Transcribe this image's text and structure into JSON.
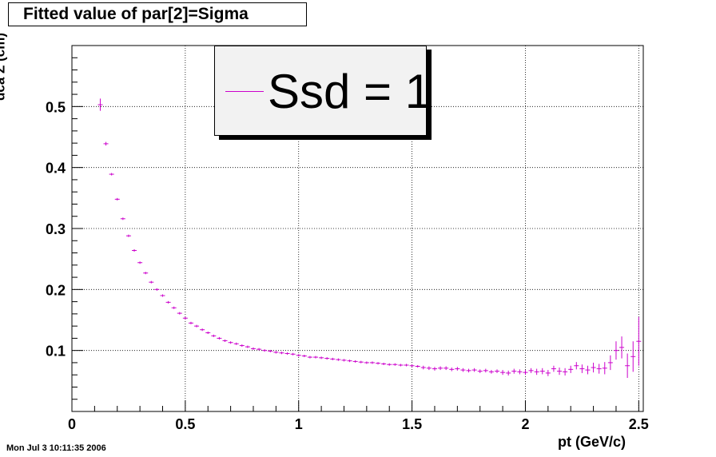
{
  "title": "Fitted value of par[2]=Sigma",
  "timestamp": "Mon Jul  3 10:11:35 2006",
  "legend": {
    "label": "Ssd = 1",
    "color": "#cc00cc"
  },
  "chart_data": {
    "type": "scatter",
    "title": "Fitted value of par[2]=Sigma",
    "xlabel": "pt (GeV/c)",
    "ylabel": "dca Z (cm)",
    "xlim": [
      0,
      2.52
    ],
    "ylim": [
      0.0,
      0.6
    ],
    "grid": true,
    "legend_position": "top-center",
    "x_ticks": [
      0,
      0.5,
      1,
      1.5,
      2,
      2.5
    ],
    "x_tick_labels": [
      "0",
      "0.5",
      "1",
      "1.5",
      "2",
      "2.5"
    ],
    "y_ticks": [
      0.1,
      0.2,
      0.3,
      0.4,
      0.5
    ],
    "y_tick_labels": [
      "0.1",
      "0.2",
      "0.3",
      "0.4",
      "0.5"
    ],
    "series": [
      {
        "name": "Ssd = 1",
        "color": "#cc00cc",
        "x": [
          0.125,
          0.15,
          0.175,
          0.2,
          0.225,
          0.25,
          0.275,
          0.3,
          0.325,
          0.35,
          0.375,
          0.4,
          0.425,
          0.45,
          0.475,
          0.5,
          0.525,
          0.55,
          0.575,
          0.6,
          0.625,
          0.65,
          0.675,
          0.7,
          0.725,
          0.75,
          0.775,
          0.8,
          0.825,
          0.85,
          0.875,
          0.9,
          0.925,
          0.95,
          0.975,
          1.0,
          1.025,
          1.05,
          1.075,
          1.1,
          1.125,
          1.15,
          1.175,
          1.2,
          1.225,
          1.25,
          1.275,
          1.3,
          1.325,
          1.35,
          1.375,
          1.4,
          1.425,
          1.45,
          1.475,
          1.5,
          1.525,
          1.55,
          1.575,
          1.6,
          1.625,
          1.65,
          1.675,
          1.7,
          1.725,
          1.75,
          1.775,
          1.8,
          1.825,
          1.85,
          1.875,
          1.9,
          1.925,
          1.95,
          1.975,
          2.0,
          2.025,
          2.05,
          2.075,
          2.1,
          2.125,
          2.15,
          2.175,
          2.2,
          2.225,
          2.25,
          2.275,
          2.3,
          2.325,
          2.35,
          2.375,
          2.4,
          2.425,
          2.45,
          2.475,
          2.5
        ],
        "y": [
          0.503,
          0.439,
          0.389,
          0.348,
          0.316,
          0.288,
          0.264,
          0.244,
          0.227,
          0.212,
          0.2,
          0.19,
          0.179,
          0.17,
          0.161,
          0.153,
          0.145,
          0.14,
          0.134,
          0.129,
          0.124,
          0.12,
          0.116,
          0.113,
          0.111,
          0.108,
          0.106,
          0.103,
          0.102,
          0.1,
          0.099,
          0.097,
          0.096,
          0.095,
          0.094,
          0.092,
          0.091,
          0.089,
          0.089,
          0.088,
          0.087,
          0.086,
          0.085,
          0.084,
          0.083,
          0.082,
          0.081,
          0.08,
          0.08,
          0.079,
          0.078,
          0.077,
          0.077,
          0.076,
          0.076,
          0.075,
          0.074,
          0.072,
          0.071,
          0.07,
          0.071,
          0.071,
          0.069,
          0.07,
          0.068,
          0.067,
          0.068,
          0.066,
          0.067,
          0.065,
          0.066,
          0.064,
          0.063,
          0.066,
          0.065,
          0.064,
          0.067,
          0.065,
          0.066,
          0.063,
          0.07,
          0.066,
          0.065,
          0.069,
          0.075,
          0.07,
          0.068,
          0.072,
          0.07,
          0.071,
          0.08,
          0.1,
          0.105,
          0.075,
          0.09,
          0.115
        ],
        "yerr": [
          0.01,
          0.003,
          0.002,
          0.002,
          0.002,
          0.002,
          0.002,
          0.002,
          0.002,
          0.002,
          0.002,
          0.002,
          0.002,
          0.002,
          0.002,
          0.002,
          0.002,
          0.002,
          0.002,
          0.002,
          0.002,
          0.002,
          0.002,
          0.002,
          0.002,
          0.002,
          0.002,
          0.002,
          0.002,
          0.002,
          0.002,
          0.002,
          0.002,
          0.002,
          0.002,
          0.002,
          0.002,
          0.002,
          0.002,
          0.002,
          0.002,
          0.002,
          0.002,
          0.002,
          0.002,
          0.002,
          0.002,
          0.002,
          0.002,
          0.002,
          0.002,
          0.002,
          0.002,
          0.002,
          0.002,
          0.002,
          0.002,
          0.003,
          0.003,
          0.003,
          0.003,
          0.003,
          0.003,
          0.003,
          0.003,
          0.003,
          0.003,
          0.003,
          0.003,
          0.003,
          0.003,
          0.004,
          0.004,
          0.004,
          0.004,
          0.004,
          0.004,
          0.005,
          0.005,
          0.005,
          0.005,
          0.006,
          0.006,
          0.006,
          0.006,
          0.007,
          0.007,
          0.008,
          0.008,
          0.01,
          0.012,
          0.015,
          0.018,
          0.02,
          0.025,
          0.04
        ]
      }
    ]
  }
}
